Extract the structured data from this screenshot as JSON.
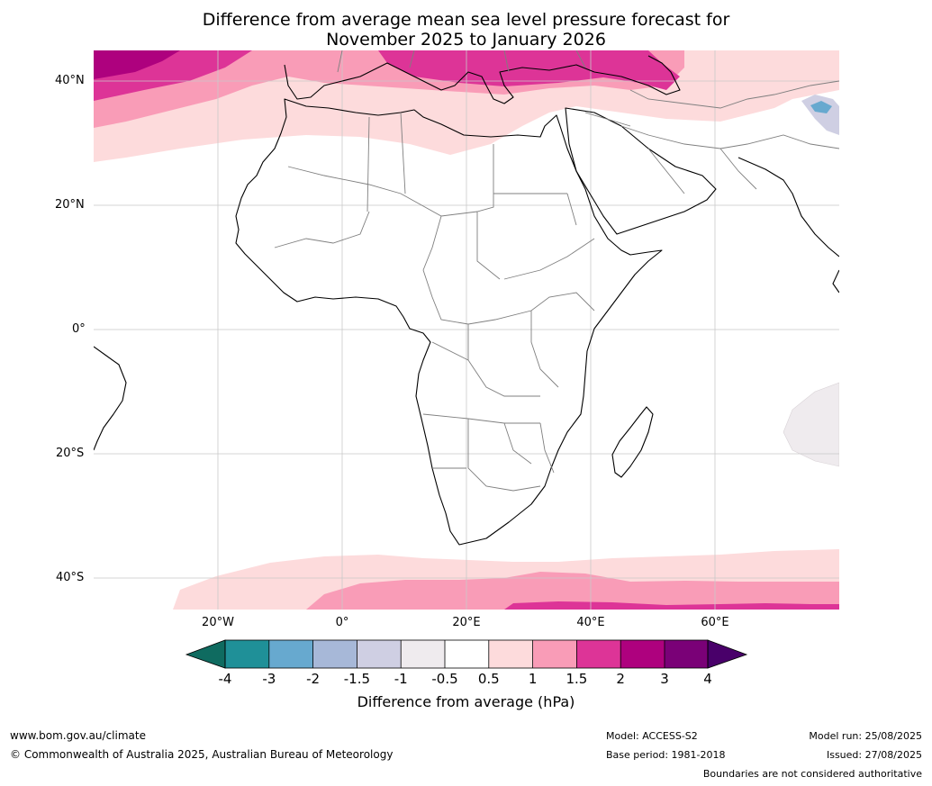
{
  "title": {
    "line1": "Difference from average mean sea level pressure forecast for",
    "line2": "November 2025 to January 2026"
  },
  "axes": {
    "lat_labels": [
      "40°N",
      "20°N",
      "0°",
      "20°S",
      "40°S"
    ],
    "lon_labels": [
      "20°W",
      "0°",
      "20°E",
      "40°E",
      "60°E"
    ]
  },
  "colorbar": {
    "label": "Difference from average (hPa)",
    "ticks": [
      "-4",
      "-3",
      "-2",
      "-1.5",
      "-1",
      "-0.5",
      "0.5",
      "1",
      "1.5",
      "2",
      "3",
      "4"
    ],
    "colors": {
      "below_-4": "#0f6b60",
      "-4_-3": "#1f9098",
      "-3_-2": "#67a9cf",
      "-2_-1.5": "#a7b8d8",
      "-1.5_-1": "#cfcfe3",
      "-1_-0.5": "#efebee",
      "-0.5_0.5": "#ffffff",
      "0.5_1": "#fddbdc",
      "1_1.5": "#f99cb7",
      "1.5_2": "#dd3497",
      "2_3": "#ae017e",
      "3_4": "#7a0177",
      "above_4": "#49006a"
    }
  },
  "footer": {
    "website": "www.bom.gov.au/climate",
    "copyright": "© Commonwealth of Australia 2025, Australian Bureau of Meteorology",
    "model": "Model: ACCESS-S2",
    "base_period": "Base period: 1981-2018",
    "model_run": "Model run: 25/08/2025",
    "issued": "Issued: 27/08/2025",
    "disclaimer": "Boundaries are not considered authoritative"
  }
}
